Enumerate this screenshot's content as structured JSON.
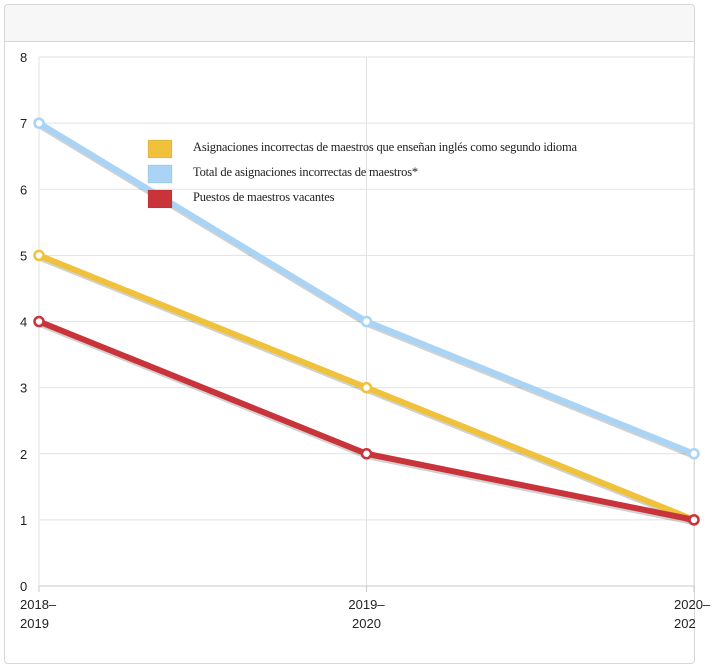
{
  "chart_data": {
    "type": "line",
    "categories": [
      {
        "line1": "2018–",
        "line2": "2019"
      },
      {
        "line1": "2019–",
        "line2": "2020"
      },
      {
        "line1": "2020–",
        "line2": "202"
      }
    ],
    "ylim": [
      0,
      8
    ],
    "yticks": [
      "0",
      "1",
      "2",
      "3",
      "4",
      "5",
      "6",
      "7",
      "8"
    ],
    "grid": true,
    "legend_position": "top-center",
    "series": [
      {
        "name": "Asignaciones incorrectas de maestros que enseñan inglés como segundo idioma",
        "color": "#f0c13a",
        "values": [
          5,
          3,
          1
        ]
      },
      {
        "name": "Total de asignaciones incorrectas de maestros*",
        "color": "#a9d4f5",
        "values": [
          7,
          4,
          2
        ]
      },
      {
        "name": "Puestos de maestros vacantes",
        "color": "#c9343b",
        "values": [
          4,
          2,
          1
        ]
      }
    ]
  }
}
